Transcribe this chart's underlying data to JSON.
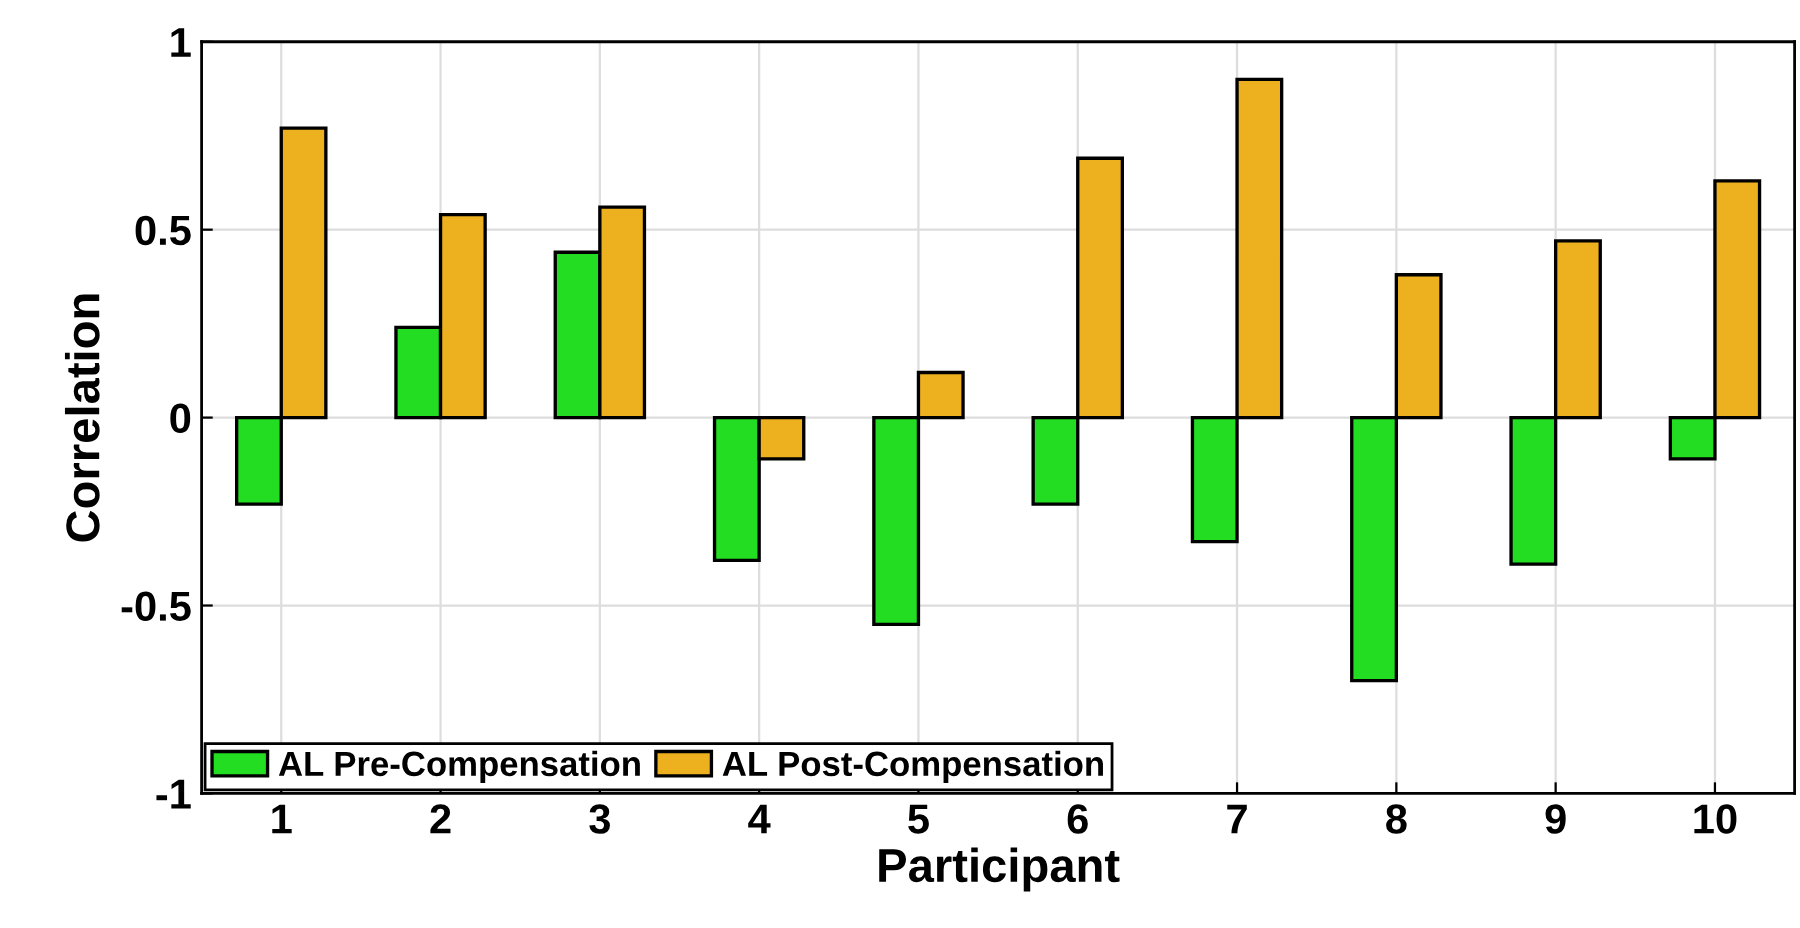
{
  "chart_data": {
    "type": "bar",
    "xlabel": "Participant",
    "ylabel": "Correlation",
    "categories": [
      "1",
      "2",
      "3",
      "4",
      "5",
      "6",
      "7",
      "8",
      "9",
      "10"
    ],
    "series": [
      {
        "name": "AL Pre-Compensation",
        "color": "#22dd22",
        "values": [
          -0.23,
          0.24,
          0.44,
          -0.38,
          -0.55,
          -0.23,
          -0.33,
          -0.7,
          -0.39,
          -0.11
        ]
      },
      {
        "name": "AL Post-Compensation",
        "color": "#edb120",
        "values": [
          0.77,
          0.54,
          0.56,
          -0.11,
          0.12,
          0.69,
          0.9,
          0.38,
          0.47,
          0.63
        ]
      }
    ],
    "ylim": [
      -1,
      1
    ],
    "yticks": [
      -1,
      -0.5,
      0,
      0.5,
      1
    ],
    "grid": true,
    "legend": "bottom left"
  }
}
